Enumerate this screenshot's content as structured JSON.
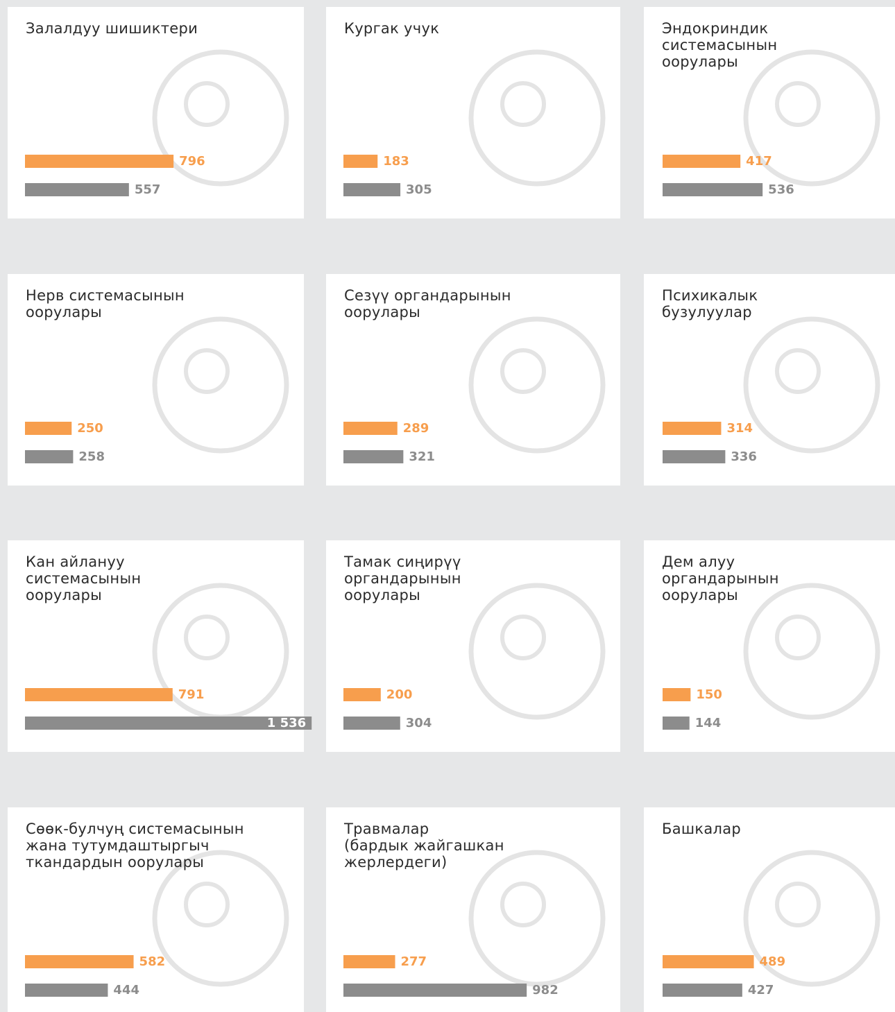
{
  "chart_data": [
    {
      "type": "bar",
      "title": [
        "Залалдуу шишиктери"
      ],
      "values": [
        796,
        557
      ],
      "colors": [
        "#f79e4d",
        "#8c8c8c"
      ]
    },
    {
      "type": "bar",
      "title": [
        "Кургак учук"
      ],
      "values": [
        183,
        305
      ],
      "colors": [
        "#f79e4d",
        "#8c8c8c"
      ]
    },
    {
      "type": "bar",
      "title": [
        "Эндокриндик",
        "системасынын",
        "оорулары"
      ],
      "values": [
        417,
        536
      ],
      "colors": [
        "#f79e4d",
        "#8c8c8c"
      ]
    },
    {
      "type": "bar",
      "title": [
        "Нерв системасынын",
        "оорулары"
      ],
      "values": [
        250,
        258
      ],
      "colors": [
        "#f79e4d",
        "#8c8c8c"
      ]
    },
    {
      "type": "bar",
      "title": [
        "Сезүү органдарынын",
        "оорулары"
      ],
      "values": [
        289,
        321
      ],
      "colors": [
        "#f79e4d",
        "#8c8c8c"
      ]
    },
    {
      "type": "bar",
      "title": [
        "Психикалык",
        "бузулуулар"
      ],
      "values": [
        314,
        336
      ],
      "colors": [
        "#f79e4d",
        "#8c8c8c"
      ]
    },
    {
      "type": "bar",
      "title": [
        "Кан айлануу",
        "системасынын",
        "оорулары"
      ],
      "values": [
        791,
        1536
      ],
      "value_labels": [
        "791",
        "1 536"
      ],
      "colors": [
        "#f79e4d",
        "#8c8c8c"
      ]
    },
    {
      "type": "bar",
      "title": [
        "Тамак сиңирүү",
        "органдарынын",
        "оорулары"
      ],
      "values": [
        200,
        304
      ],
      "colors": [
        "#f79e4d",
        "#8c8c8c"
      ]
    },
    {
      "type": "bar",
      "title": [
        "Дем алуу",
        "органдарынын",
        "оорулары"
      ],
      "values": [
        150,
        144
      ],
      "colors": [
        "#f79e4d",
        "#8c8c8c"
      ]
    },
    {
      "type": "bar",
      "title": [
        "Сөөк-булчуң системасынын",
        "жана тутумдаштыргыч",
        "ткандардын оорулары"
      ],
      "values": [
        582,
        444
      ],
      "colors": [
        "#f79e4d",
        "#8c8c8c"
      ]
    },
    {
      "type": "bar",
      "title": [
        "Травмалар",
        "(бардык жайгашкан",
        "жерлердеги)"
      ],
      "values": [
        277,
        982
      ],
      "colors": [
        "#f79e4d",
        "#8c8c8c"
      ]
    },
    {
      "type": "bar",
      "title": [
        "Башкалар"
      ],
      "values": [
        489,
        427
      ],
      "colors": [
        "#f79e4d",
        "#8c8c8c"
      ]
    }
  ]
}
